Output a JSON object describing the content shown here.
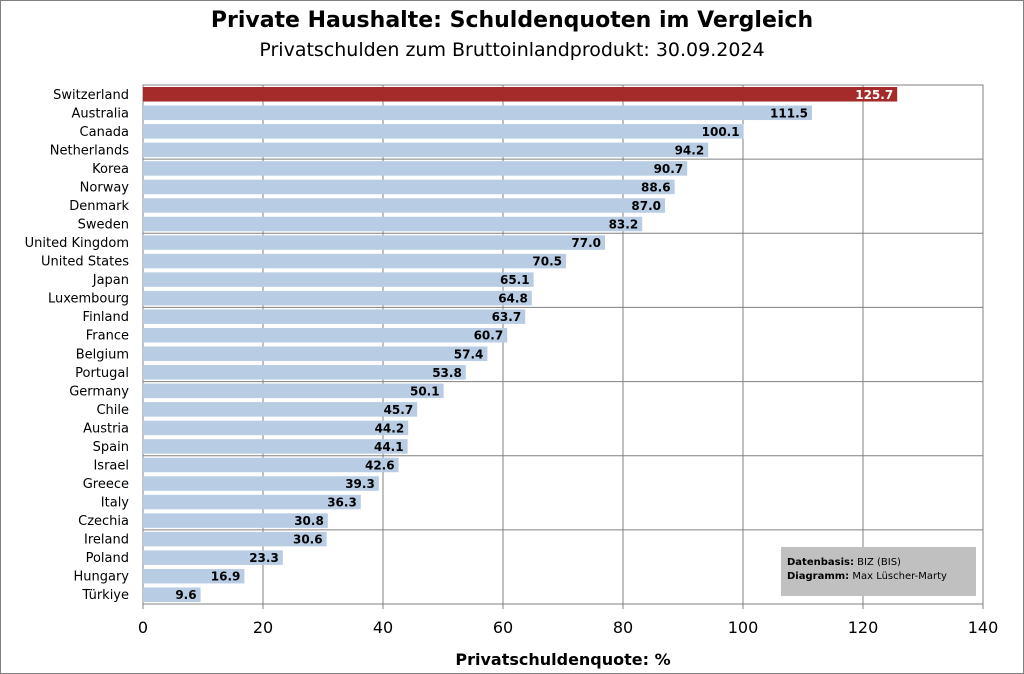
{
  "title": "Private Haushalte: Schuldenquoten im Vergleich",
  "subtitle": "Privatschulden zum Bruttoinlandprodukt: 30.09.2024",
  "colors": {
    "bar": "#b8cce4",
    "highlight": "#a52a2a",
    "grid": "#808080"
  },
  "source_box": {
    "datenbasis_label": "Datenbasis:",
    "datenbasis_value": "BIZ (BIS)",
    "diagramm_label": "Diagramm:",
    "diagramm_value": "Max Lüscher-Marty"
  },
  "chart_data": {
    "type": "bar",
    "orientation": "horizontal",
    "title": "Private Haushalte: Schuldenquoten im Vergleich",
    "subtitle": "Privatschulden zum Bruttoinlandprodukt: 30.09.2024",
    "xlabel": "Privatschuldenquote: %",
    "ylabel": "",
    "xlim": [
      0,
      140
    ],
    "xticks": [
      0,
      20,
      40,
      60,
      80,
      100,
      120,
      140
    ],
    "grid": true,
    "highlighted_category": "Switzerland",
    "categories": [
      "Switzerland",
      "Australia",
      "Canada",
      "Netherlands",
      "Korea",
      "Norway",
      "Denmark",
      "Sweden",
      "United Kingdom",
      "United States",
      "Japan",
      "Luxembourg",
      "Finland",
      "France",
      "Belgium",
      "Portugal",
      "Germany",
      "Chile",
      "Austria",
      "Spain",
      "Israel",
      "Greece",
      "Italy",
      "Czechia",
      "Ireland",
      "Poland",
      "Hungary",
      "Türkiye"
    ],
    "values": [
      125.7,
      111.5,
      100.1,
      94.2,
      90.7,
      88.6,
      87.0,
      83.2,
      77.0,
      70.5,
      65.1,
      64.8,
      63.7,
      60.7,
      57.4,
      53.8,
      50.1,
      45.7,
      44.2,
      44.1,
      42.6,
      39.3,
      36.3,
      30.8,
      30.6,
      23.3,
      16.9,
      9.6
    ],
    "value_labels": [
      "125.7",
      "111.5",
      "100.1",
      "94.2",
      "90.7",
      "88.6",
      "87.0",
      "83.2",
      "77.0",
      "70.5",
      "65.1",
      "64.8",
      "63.7",
      "60.7",
      "57.4",
      "53.8",
      "50.1",
      "45.7",
      "44.2",
      "44.1",
      "42.6",
      "39.3",
      "36.3",
      "30.8",
      "30.6",
      "23.3",
      "16.9",
      "9.6"
    ]
  }
}
